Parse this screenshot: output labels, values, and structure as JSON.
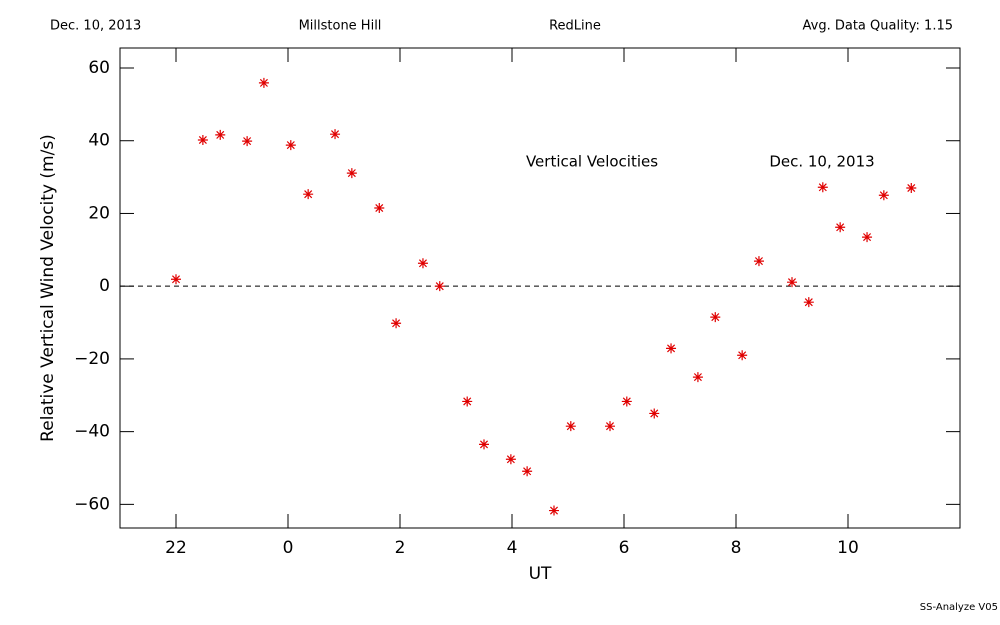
{
  "chart_data": {
    "type": "scatter",
    "header": [
      "Dec. 10, 2013",
      "Millstone Hill",
      "RedLine",
      "Avg. Data Quality: 1.15"
    ],
    "annotations": [
      "Vertical Velocities",
      "Dec. 10, 2013"
    ],
    "footer": "SS-Analyze V05",
    "x_label": "UT",
    "y_label": "Relative Vertical Wind Velocity (m/s)",
    "color": "#e00000",
    "x": [
      22.0,
      22.48,
      22.79,
      23.27,
      23.57,
      24.05,
      24.36,
      24.84,
      25.14,
      25.63,
      25.93,
      26.41,
      26.71,
      27.2,
      27.5,
      27.98,
      28.27,
      28.75,
      29.05,
      29.75,
      30.05,
      30.54,
      30.84,
      31.32,
      31.63,
      32.11,
      32.41,
      33.0,
      33.3,
      33.55,
      33.86,
      34.34,
      34.64,
      35.13
    ],
    "values": [
      1.9,
      40.2,
      41.6,
      39.9,
      55.9,
      38.8,
      25.3,
      41.8,
      31.1,
      21.5,
      -10.2,
      6.3,
      0,
      -31.7,
      -43.5,
      -47.6,
      -50.9,
      -61.7,
      -38.5,
      -38.5,
      -31.7,
      -35.0,
      -17.1,
      -25.0,
      -8.5,
      -19.0,
      6.9,
      1.1,
      -4.4,
      27.2,
      16.2,
      13.5,
      25.0,
      27.0
    ],
    "reference_line": 0,
    "xlim": [
      21,
      36
    ],
    "xticks": [
      {
        "value": 22,
        "label": "22"
      },
      {
        "value": 24,
        "label": "0"
      },
      {
        "value": 26,
        "label": "2"
      },
      {
        "value": 28,
        "label": "4"
      },
      {
        "value": 30,
        "label": "6"
      },
      {
        "value": 32,
        "label": "8"
      },
      {
        "value": 34,
        "label": "10"
      }
    ],
    "ylim": [
      -66.5,
      65.5
    ],
    "yticks": [
      {
        "value": -60,
        "label": "−60"
      },
      {
        "value": -40,
        "label": "−40"
      },
      {
        "value": -20,
        "label": "−20"
      },
      0,
      20,
      40,
      60
    ]
  }
}
